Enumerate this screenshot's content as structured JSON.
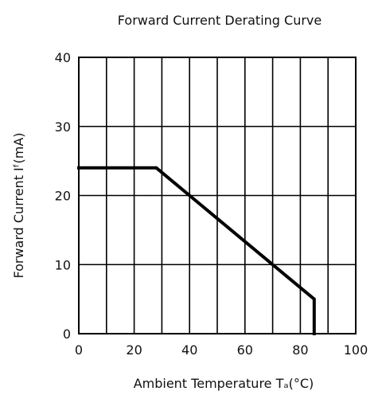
{
  "chart_data": {
    "type": "line",
    "title": "Forward Current Derating Curve",
    "xlabel": "Ambient Temperature Tₐ(°C)",
    "ylabel": "Forward Current Iᶠ(mA)",
    "x_ticks": [
      "0",
      "20",
      "40",
      "60",
      "80",
      "100"
    ],
    "y_ticks": [
      "0",
      "10",
      "20",
      "30",
      "40"
    ],
    "xlim": [
      0,
      100
    ],
    "ylim": [
      0,
      40
    ],
    "x_grid_step": 10,
    "y_grid_step": 10,
    "grid": true,
    "series": [
      {
        "color": "#000000",
        "points": [
          {
            "x": 0,
            "y": 24
          },
          {
            "x": 28,
            "y": 24
          },
          {
            "x": 85,
            "y": 5
          },
          {
            "x": 85,
            "y": 0
          }
        ]
      }
    ]
  }
}
